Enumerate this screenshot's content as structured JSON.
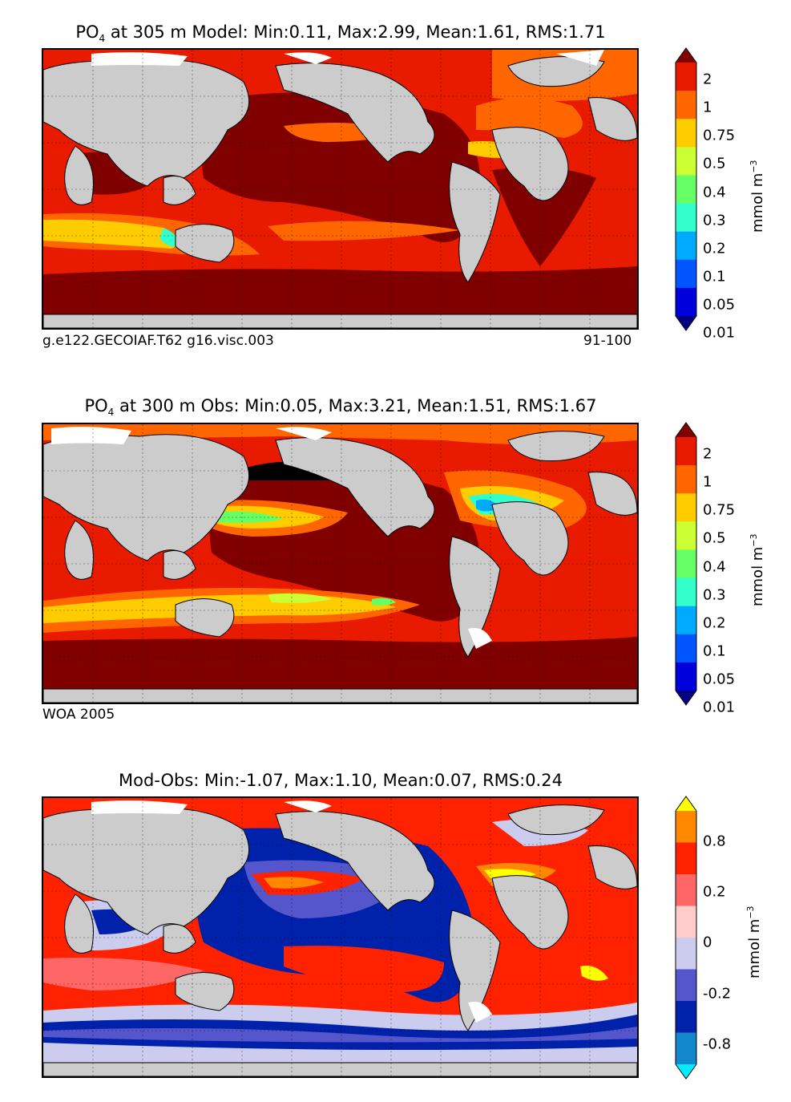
{
  "panels": [
    {
      "title_prefix": "PO",
      "title_sub": "4",
      "title_rest": " at 305 m Model: Min:0.11, Max:2.99, Mean:1.61, RMS:1.71",
      "footer_left": "g.e122.GECOIAF.T62 g16.visc.003",
      "footer_right": "91-100",
      "colorbar_ticks": [
        "2",
        "1",
        "0.75",
        "0.5",
        "0.4",
        "0.3",
        "0.2",
        "0.1",
        "0.05",
        "0.01"
      ],
      "colorbar_colors": [
        "#800000",
        "#e81a00",
        "#ff6600",
        "#ffcc00",
        "#ccff33",
        "#66ff66",
        "#33ffcc",
        "#00aaff",
        "#0055ff",
        "#0000dd",
        "#000080"
      ],
      "unit_label": "mmol m",
      "unit_exp": "−3"
    },
    {
      "title_prefix": "PO",
      "title_sub": "4",
      "title_rest": " at 300 m Obs: Min:0.05, Max:3.21, Mean:1.51, RMS:1.67",
      "footer_left": "WOA 2005",
      "footer_right": "",
      "colorbar_ticks": [
        "2",
        "1",
        "0.75",
        "0.5",
        "0.4",
        "0.3",
        "0.2",
        "0.1",
        "0.05",
        "0.01"
      ],
      "colorbar_colors": [
        "#800000",
        "#e81a00",
        "#ff6600",
        "#ffcc00",
        "#ccff33",
        "#66ff66",
        "#33ffcc",
        "#00aaff",
        "#0055ff",
        "#0000dd",
        "#000080"
      ],
      "unit_label": "mmol m",
      "unit_exp": "−3"
    },
    {
      "title_prefix": "",
      "title_sub": "",
      "title_rest": "Mod-Obs: Min:-1.07, Max:1.10, Mean:0.07, RMS:0.24",
      "footer_left": "",
      "footer_right": "",
      "colorbar_ticks": [
        "0.8",
        "0.2",
        "0",
        "-0.2",
        "-0.8"
      ],
      "colorbar_colors": [
        "#ffff00",
        "#ff8800",
        "#ff2200",
        "#ff6666",
        "#ffcccc",
        "#ccccee",
        "#5555cc",
        "#0022aa",
        "#1188cc",
        "#00eeff"
      ],
      "unit_label": "mmol m",
      "unit_exp": "−3"
    }
  ],
  "colors": {
    "land": "#cccccc",
    "no_data": "#ffffff",
    "coast": "#000000"
  }
}
